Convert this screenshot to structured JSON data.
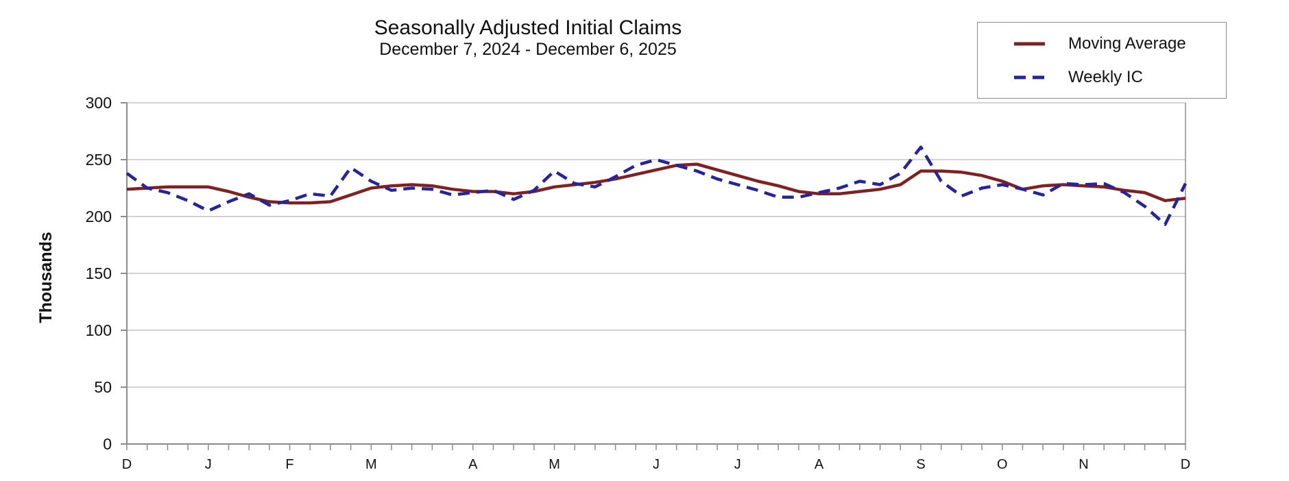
{
  "colors": {
    "moving_average": "#7F2021",
    "weekly_ic": "#24249E",
    "gridline": "#C3C3C3",
    "axis": "#8C8C8C",
    "text": "#000000",
    "background": "#FFFFFF"
  },
  "chart_data": {
    "type": "line",
    "title": "Seasonally Adjusted Initial Claims",
    "subtitle": "December 7, 2024 - December 6, 2025",
    "ylabel": "Thousands",
    "xlabel": "",
    "ylim": [
      0,
      300
    ],
    "y_ticks": [
      0,
      50,
      100,
      150,
      200,
      250,
      300
    ],
    "grid": "horizontal",
    "legend_position": "top-right",
    "x_unit": "week",
    "weeks_total": 52,
    "x_labels": [
      {
        "label": "D",
        "week": 0
      },
      {
        "label": "J",
        "week": 4
      },
      {
        "label": "F",
        "week": 8
      },
      {
        "label": "M",
        "week": 12
      },
      {
        "label": "A",
        "week": 17
      },
      {
        "label": "M",
        "week": 21
      },
      {
        "label": "J",
        "week": 26
      },
      {
        "label": "J",
        "week": 30
      },
      {
        "label": "A",
        "week": 34
      },
      {
        "label": "S",
        "week": 39
      },
      {
        "label": "O",
        "week": 43
      },
      {
        "label": "N",
        "week": 47
      },
      {
        "label": "D",
        "week": 52
      }
    ],
    "series": [
      {
        "name": "Moving Average",
        "color": "#7F2021",
        "line_style": "solid",
        "values": [
          224,
          225,
          226,
          226,
          226,
          222,
          217,
          213,
          212,
          212,
          213,
          219,
          225,
          227,
          228,
          227,
          224,
          222,
          222,
          220,
          222,
          226,
          228,
          230,
          233,
          237,
          241,
          245,
          246,
          241,
          236,
          231,
          227,
          222,
          220,
          220,
          222,
          224,
          228,
          240,
          240,
          239,
          236,
          231,
          224,
          227,
          228,
          227,
          226,
          223,
          221,
          214,
          216
        ]
      },
      {
        "name": "Weekly IC",
        "color": "#24249E",
        "line_style": "dashed",
        "values": [
          238,
          225,
          221,
          214,
          205,
          213,
          220,
          210,
          214,
          220,
          218,
          243,
          231,
          223,
          225,
          224,
          219,
          221,
          223,
          215,
          223,
          240,
          229,
          226,
          235,
          245,
          250,
          245,
          240,
          233,
          228,
          223,
          217,
          217,
          221,
          225,
          231,
          228,
          238,
          261,
          231,
          218,
          225,
          228,
          224,
          219,
          229,
          228,
          229,
          221,
          209,
          193,
          229
        ]
      }
    ]
  }
}
